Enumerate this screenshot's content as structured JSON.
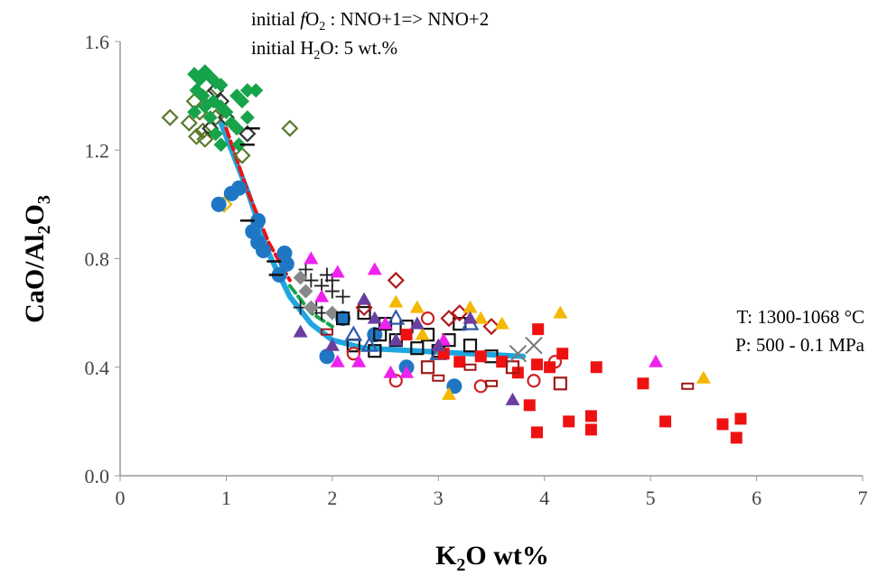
{
  "chart_data": {
    "type": "scatter",
    "title": "",
    "xlabel": "K2O wt%",
    "ylabel": "CaO/Al2O3",
    "xlim": [
      0,
      7
    ],
    "ylim": [
      0,
      1.6
    ],
    "xticks": [
      "0",
      "1",
      "2",
      "3",
      "4",
      "5",
      "6",
      "7"
    ],
    "yticks": [
      "0.0",
      "0.4",
      "0.8",
      "1.2",
      "1.6"
    ],
    "grid": false,
    "annotations": {
      "line1": "initial fO2 : NNO+1=> NNO+2",
      "line2": "initial H2O: 5 wt.%",
      "line3": "T: 1300-1068 °C",
      "line4": "P: 500 - 0.1 MPa"
    },
    "series": [
      {
        "marker": "diamond",
        "fill": true,
        "color": "#16a34a",
        "points": [
          [
            0.7,
            1.48
          ],
          [
            0.75,
            1.46
          ],
          [
            0.8,
            1.49
          ],
          [
            0.85,
            1.47
          ],
          [
            0.9,
            1.45
          ],
          [
            0.95,
            1.44
          ],
          [
            0.72,
            1.42
          ],
          [
            0.78,
            1.4
          ],
          [
            0.88,
            1.38
          ],
          [
            0.95,
            1.36
          ],
          [
            1.0,
            1.34
          ],
          [
            1.1,
            1.4
          ],
          [
            1.15,
            1.38
          ],
          [
            1.2,
            1.42
          ],
          [
            1.28,
            1.42
          ],
          [
            1.05,
            1.3
          ],
          [
            0.85,
            1.32
          ],
          [
            0.8,
            1.36
          ],
          [
            0.9,
            1.26
          ],
          [
            1.1,
            1.28
          ],
          [
            1.12,
            1.22
          ],
          [
            0.95,
            1.22
          ],
          [
            0.7,
            1.34
          ],
          [
            1.2,
            1.32
          ]
        ]
      },
      {
        "marker": "diamond",
        "fill": false,
        "color": "#5b7a2a",
        "points": [
          [
            0.47,
            1.32
          ],
          [
            0.65,
            1.3
          ],
          [
            0.7,
            1.38
          ],
          [
            0.75,
            1.34
          ],
          [
            0.72,
            1.25
          ],
          [
            0.8,
            1.24
          ],
          [
            0.9,
            1.32
          ],
          [
            1.15,
            1.18
          ],
          [
            1.6,
            1.28
          ],
          [
            0.85,
            1.4
          ],
          [
            0.78,
            1.27
          ]
        ]
      },
      {
        "marker": "diamond",
        "fill": false,
        "color": "#333333",
        "points": [
          [
            0.9,
            1.42
          ],
          [
            0.95,
            1.38
          ],
          [
            0.85,
            1.28
          ],
          [
            1.2,
            1.26
          ],
          [
            1.0,
            1.32
          ]
        ]
      },
      {
        "marker": "diamond",
        "fill": false,
        "color": "#e6b800",
        "points": [
          [
            0.98,
            1.0
          ]
        ]
      },
      {
        "marker": "circle",
        "fill": true,
        "color": "#1f77c4",
        "points": [
          [
            0.93,
            1.0
          ],
          [
            1.05,
            1.04
          ],
          [
            1.12,
            1.06
          ],
          [
            1.3,
            0.94
          ],
          [
            1.3,
            0.86
          ],
          [
            1.35,
            0.83
          ],
          [
            1.55,
            0.82
          ],
          [
            1.57,
            0.78
          ],
          [
            1.5,
            0.74
          ],
          [
            1.25,
            0.9
          ],
          [
            1.95,
            0.44
          ],
          [
            2.7,
            0.4
          ],
          [
            3.15,
            0.33
          ],
          [
            2.1,
            0.58
          ],
          [
            2.4,
            0.52
          ]
        ]
      },
      {
        "marker": "dash",
        "fill": true,
        "color": "#111111",
        "points": [
          [
            1.25,
            1.28
          ],
          [
            1.2,
            1.22
          ],
          [
            1.45,
            0.79
          ],
          [
            1.47,
            0.74
          ],
          [
            1.2,
            0.94
          ]
        ]
      },
      {
        "marker": "triangle",
        "fill": true,
        "color": "#ee22ee",
        "points": [
          [
            1.8,
            0.8
          ],
          [
            2.05,
            0.75
          ],
          [
            2.4,
            0.76
          ],
          [
            1.9,
            0.66
          ],
          [
            2.25,
            0.42
          ],
          [
            2.05,
            0.42
          ],
          [
            2.55,
            0.38
          ],
          [
            5.05,
            0.42
          ],
          [
            2.5,
            0.56
          ],
          [
            3.05,
            0.5
          ],
          [
            2.7,
            0.38
          ]
        ]
      },
      {
        "marker": "triangle",
        "fill": true,
        "color": "#f5b800",
        "points": [
          [
            2.6,
            0.64
          ],
          [
            2.8,
            0.62
          ],
          [
            3.3,
            0.62
          ],
          [
            3.4,
            0.58
          ],
          [
            4.15,
            0.6
          ],
          [
            5.5,
            0.36
          ],
          [
            3.1,
            0.3
          ],
          [
            2.85,
            0.52
          ],
          [
            3.6,
            0.56
          ]
        ]
      },
      {
        "marker": "triangle",
        "fill": true,
        "color": "#6a3ea1",
        "points": [
          [
            1.7,
            0.53
          ],
          [
            2.3,
            0.65
          ],
          [
            2.6,
            0.5
          ],
          [
            2.0,
            0.48
          ],
          [
            3.7,
            0.28
          ],
          [
            2.8,
            0.56
          ],
          [
            3.3,
            0.58
          ],
          [
            2.4,
            0.58
          ],
          [
            3.0,
            0.48
          ]
        ]
      },
      {
        "marker": "triangle",
        "fill": false,
        "color": "#2f5aa8",
        "points": [
          [
            2.6,
            0.58
          ],
          [
            2.2,
            0.52
          ],
          [
            3.3,
            0.56
          ],
          [
            3.0,
            0.45
          ],
          [
            2.35,
            0.48
          ]
        ]
      },
      {
        "marker": "cross",
        "fill": false,
        "color": "#222222",
        "points": [
          [
            1.75,
            0.76
          ],
          [
            1.8,
            0.72
          ],
          [
            1.9,
            0.7
          ],
          [
            1.95,
            0.74
          ],
          [
            2.0,
            0.68
          ],
          [
            1.7,
            0.62
          ],
          [
            1.85,
            0.62
          ],
          [
            2.1,
            0.66
          ],
          [
            2.0,
            0.72
          ],
          [
            1.9,
            0.6
          ]
        ]
      },
      {
        "marker": "diamond",
        "fill": true,
        "color": "#888888",
        "points": [
          [
            1.7,
            0.73
          ],
          [
            1.75,
            0.68
          ],
          [
            1.8,
            0.62
          ],
          [
            2.0,
            0.6
          ]
        ]
      },
      {
        "marker": "square",
        "fill": false,
        "color": "#111111",
        "points": [
          [
            2.1,
            0.58
          ],
          [
            2.3,
            0.6
          ],
          [
            2.5,
            0.56
          ],
          [
            2.7,
            0.55
          ],
          [
            2.9,
            0.52
          ],
          [
            3.1,
            0.5
          ],
          [
            3.3,
            0.48
          ],
          [
            2.2,
            0.48
          ],
          [
            2.4,
            0.46
          ],
          [
            2.6,
            0.5
          ],
          [
            2.8,
            0.47
          ],
          [
            3.0,
            0.46
          ],
          [
            3.5,
            0.44
          ],
          [
            2.45,
            0.52
          ],
          [
            3.2,
            0.56
          ]
        ]
      },
      {
        "marker": "square",
        "fill": true,
        "color": "#ee1111",
        "points": [
          [
            4.49,
            0.4
          ],
          [
            4.93,
            0.34
          ],
          [
            5.14,
            0.2
          ],
          [
            4.23,
            0.2
          ],
          [
            4.44,
            0.22
          ],
          [
            4.44,
            0.17
          ],
          [
            5.68,
            0.19
          ],
          [
            5.85,
            0.21
          ],
          [
            5.81,
            0.14
          ],
          [
            3.93,
            0.41
          ],
          [
            3.86,
            0.26
          ],
          [
            3.93,
            0.16
          ],
          [
            3.94,
            0.54
          ],
          [
            4.17,
            0.45
          ],
          [
            3.2,
            0.42
          ],
          [
            3.4,
            0.44
          ],
          [
            3.6,
            0.42
          ],
          [
            3.75,
            0.38
          ],
          [
            4.05,
            0.4
          ],
          [
            3.05,
            0.45
          ],
          [
            2.7,
            0.52
          ]
        ]
      },
      {
        "marker": "square",
        "fill": false,
        "color": "#a01818",
        "points": [
          [
            4.15,
            0.34
          ],
          [
            3.7,
            0.4
          ],
          [
            2.9,
            0.4
          ]
        ]
      },
      {
        "marker": "diamond",
        "fill": false,
        "color": "#b01818",
        "points": [
          [
            2.6,
            0.72
          ],
          [
            3.1,
            0.58
          ],
          [
            3.5,
            0.55
          ],
          [
            3.2,
            0.6
          ],
          [
            2.3,
            0.62
          ]
        ]
      },
      {
        "marker": "circle",
        "fill": false,
        "color": "#cc2222",
        "points": [
          [
            2.6,
            0.35
          ],
          [
            3.4,
            0.33
          ],
          [
            2.9,
            0.58
          ],
          [
            3.9,
            0.35
          ],
          [
            2.2,
            0.45
          ],
          [
            4.1,
            0.42
          ]
        ]
      },
      {
        "marker": "rect",
        "fill": false,
        "color": "#a01818",
        "points": [
          [
            1.95,
            0.53
          ],
          [
            3.5,
            0.34
          ],
          [
            5.35,
            0.33
          ],
          [
            3.3,
            0.4
          ],
          [
            3.0,
            0.36
          ]
        ]
      },
      {
        "marker": "x",
        "fill": false,
        "color": "#777777",
        "points": [
          [
            3.9,
            0.48
          ],
          [
            3.75,
            0.45
          ]
        ]
      }
    ],
    "trendlines": [
      {
        "color": "#1fa6e0",
        "style": "solid",
        "points": [
          [
            0.95,
            1.3
          ],
          [
            1.2,
            1.05
          ],
          [
            1.4,
            0.82
          ],
          [
            1.6,
            0.66
          ],
          [
            1.8,
            0.56
          ],
          [
            2.0,
            0.5
          ],
          [
            2.3,
            0.47
          ],
          [
            2.8,
            0.46
          ],
          [
            3.3,
            0.45
          ],
          [
            3.8,
            0.44
          ]
        ]
      },
      {
        "color": "#ee1111",
        "style": "dashed",
        "points": [
          [
            1.0,
            1.28
          ],
          [
            1.2,
            1.05
          ],
          [
            1.4,
            0.86
          ],
          [
            1.6,
            0.72
          ]
        ]
      },
      {
        "color": "#16a34a",
        "style": "dashed",
        "points": [
          [
            1.6,
            0.7
          ],
          [
            1.8,
            0.6
          ],
          [
            2.0,
            0.55
          ]
        ]
      }
    ]
  }
}
